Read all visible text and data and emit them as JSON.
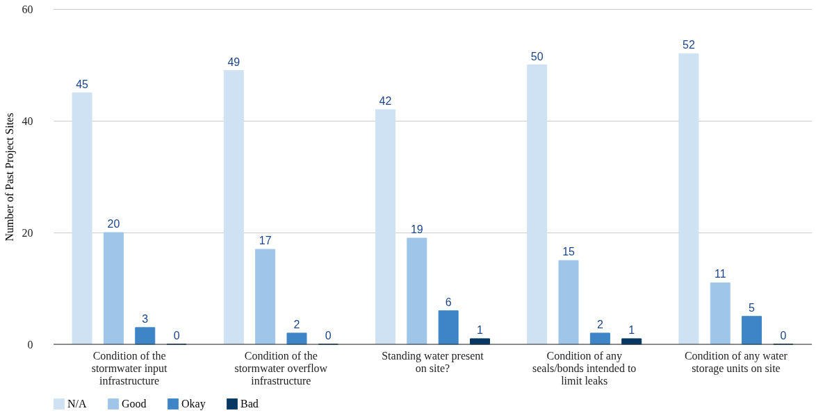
{
  "chart_data": {
    "type": "bar",
    "ylabel": "Number of Past Project Sites",
    "categories": [
      "Condition of the stormwater input infrastructure",
      "Condition of the stormwater overflow infrastructure",
      "Standing water present on site?",
      "Condition of any seals/bonds intended to limit leaks",
      "Condition of any water storage units on site"
    ],
    "series": [
      {
        "name": "N/A",
        "color": "#cfe2f3",
        "values": [
          45,
          49,
          42,
          50,
          52
        ]
      },
      {
        "name": "Good",
        "color": "#9fc5e8",
        "values": [
          20,
          17,
          19,
          15,
          11
        ]
      },
      {
        "name": "Okay",
        "color": "#3d85c6",
        "values": [
          3,
          2,
          6,
          2,
          5
        ]
      },
      {
        "name": "Bad",
        "color": "#073763",
        "values": [
          0,
          0,
          1,
          1,
          0
        ]
      }
    ],
    "ylim": [
      0,
      60
    ],
    "yticks": [
      0,
      20,
      40,
      60
    ],
    "grid": "y",
    "legend": "bottom",
    "data_labels": true
  }
}
